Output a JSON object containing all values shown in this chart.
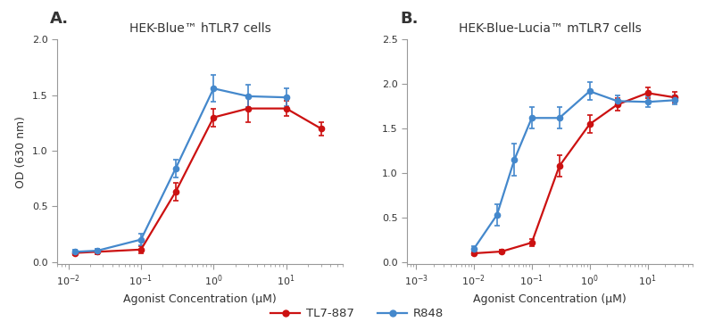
{
  "panel_A": {
    "title": "HEK-Blue™ hTLR7 cells",
    "label": "A.",
    "xlim": [
      0.007,
      60
    ],
    "ylim": [
      -0.02,
      2.0
    ],
    "yticks": [
      0.0,
      0.5,
      1.0,
      1.5,
      2.0
    ],
    "ylabel": "OD (630 nm)",
    "xlabel": "Agonist Concentration (μM)",
    "TL7887_x": [
      0.0125,
      0.025,
      0.1,
      0.3,
      1.0,
      3.0,
      10.0,
      30.0
    ],
    "TL7887_y": [
      0.08,
      0.09,
      0.11,
      0.63,
      1.3,
      1.38,
      1.38,
      1.2
    ],
    "TL7887_err": [
      0.02,
      0.02,
      0.03,
      0.08,
      0.08,
      0.12,
      0.07,
      0.06
    ],
    "R848_x": [
      0.0125,
      0.025,
      0.1,
      0.3,
      1.0,
      3.0,
      10.0
    ],
    "R848_y": [
      0.09,
      0.1,
      0.2,
      0.84,
      1.56,
      1.49,
      1.48
    ],
    "R848_err": [
      0.02,
      0.02,
      0.05,
      0.08,
      0.12,
      0.1,
      0.08
    ]
  },
  "panel_B": {
    "title": "HEK-Blue-Lucia™ mTLR7 cells",
    "label": "B.",
    "xlim": [
      0.0007,
      60
    ],
    "ylim": [
      -0.02,
      2.5
    ],
    "yticks": [
      0.0,
      0.5,
      1.0,
      1.5,
      2.0,
      2.5
    ],
    "ylabel": "OD (630 nm)",
    "xlabel": "Agonist Concentration (μM)",
    "TL7887_x": [
      0.01,
      0.03,
      0.1,
      0.3,
      1.0,
      3.0,
      10.0,
      30.0
    ],
    "TL7887_y": [
      0.1,
      0.12,
      0.22,
      1.08,
      1.55,
      1.77,
      1.9,
      1.85
    ],
    "TL7887_err": [
      0.02,
      0.02,
      0.04,
      0.12,
      0.1,
      0.07,
      0.06,
      0.06
    ],
    "R848_x": [
      0.01,
      0.025,
      0.05,
      0.1,
      0.3,
      1.0,
      3.0,
      10.0,
      30.0
    ],
    "R848_y": [
      0.15,
      0.53,
      1.15,
      1.62,
      1.62,
      1.92,
      1.81,
      1.8,
      1.82
    ],
    "R848_err": [
      0.03,
      0.12,
      0.18,
      0.12,
      0.12,
      0.1,
      0.06,
      0.06,
      0.05
    ]
  },
  "color_TL7887": "#cc1111",
  "color_R848": "#4488cc",
  "legend_TL7887": "TL7-887",
  "legend_R848": "R848",
  "background_color": "#ffffff",
  "spine_color": "#999999",
  "tick_color": "#999999",
  "label_color": "#333333",
  "title_fontsize": 10,
  "label_fontsize": 13,
  "axis_fontsize": 9,
  "tick_fontsize": 8,
  "marker_size": 4.5,
  "line_width": 1.6,
  "cap_size": 2.5,
  "err_linewidth": 1.2
}
